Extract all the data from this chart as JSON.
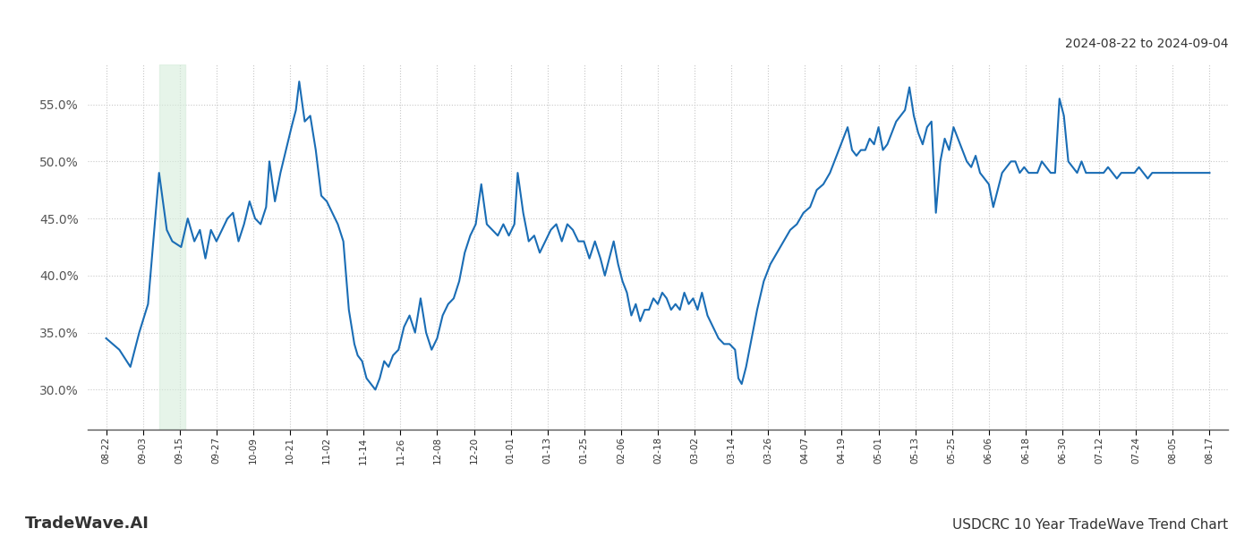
{
  "title_top_right": "2024-08-22 to 2024-09-04",
  "title_bottom_left": "TradeWave.AI",
  "title_bottom_right": "USDCRC 10 Year TradeWave Trend Chart",
  "line_color": "#1a6db5",
  "line_width": 1.5,
  "background_color": "#ffffff",
  "grid_color": "#c8c8c8",
  "highlight_color": "#d6eddb",
  "highlight_alpha": 0.6,
  "ylim": [
    0.265,
    0.585
  ],
  "yticks": [
    0.3,
    0.35,
    0.4,
    0.45,
    0.5,
    0.55
  ],
  "xtick_labels": [
    "08-22",
    "09-03",
    "09-15",
    "09-27",
    "10-09",
    "10-21",
    "11-02",
    "11-14",
    "11-26",
    "12-08",
    "12-20",
    "01-01",
    "01-13",
    "01-25",
    "02-06",
    "02-18",
    "03-02",
    "03-14",
    "03-26",
    "04-07",
    "04-19",
    "05-01",
    "05-13",
    "05-25",
    "06-06",
    "06-18",
    "06-30",
    "07-12",
    "07-24",
    "08-05",
    "08-17"
  ],
  "waypoints": [
    [
      0.0,
      0.345
    ],
    [
      0.012,
      0.335
    ],
    [
      0.022,
      0.32
    ],
    [
      0.03,
      0.35
    ],
    [
      0.038,
      0.375
    ],
    [
      0.048,
      0.49
    ],
    [
      0.055,
      0.44
    ],
    [
      0.06,
      0.43
    ],
    [
      0.068,
      0.425
    ],
    [
      0.074,
      0.45
    ],
    [
      0.08,
      0.43
    ],
    [
      0.085,
      0.44
    ],
    [
      0.09,
      0.415
    ],
    [
      0.095,
      0.44
    ],
    [
      0.1,
      0.43
    ],
    [
      0.105,
      0.44
    ],
    [
      0.11,
      0.45
    ],
    [
      0.115,
      0.455
    ],
    [
      0.12,
      0.43
    ],
    [
      0.125,
      0.445
    ],
    [
      0.13,
      0.465
    ],
    [
      0.135,
      0.45
    ],
    [
      0.14,
      0.445
    ],
    [
      0.145,
      0.46
    ],
    [
      0.148,
      0.5
    ],
    [
      0.153,
      0.465
    ],
    [
      0.158,
      0.49
    ],
    [
      0.163,
      0.51
    ],
    [
      0.168,
      0.53
    ],
    [
      0.172,
      0.545
    ],
    [
      0.175,
      0.57
    ],
    [
      0.18,
      0.535
    ],
    [
      0.185,
      0.54
    ],
    [
      0.19,
      0.51
    ],
    [
      0.195,
      0.47
    ],
    [
      0.2,
      0.465
    ],
    [
      0.205,
      0.455
    ],
    [
      0.21,
      0.445
    ],
    [
      0.215,
      0.43
    ],
    [
      0.22,
      0.37
    ],
    [
      0.225,
      0.34
    ],
    [
      0.228,
      0.33
    ],
    [
      0.232,
      0.325
    ],
    [
      0.236,
      0.31
    ],
    [
      0.24,
      0.305
    ],
    [
      0.244,
      0.3
    ],
    [
      0.248,
      0.31
    ],
    [
      0.252,
      0.325
    ],
    [
      0.256,
      0.32
    ],
    [
      0.26,
      0.33
    ],
    [
      0.265,
      0.335
    ],
    [
      0.27,
      0.355
    ],
    [
      0.275,
      0.365
    ],
    [
      0.28,
      0.35
    ],
    [
      0.285,
      0.38
    ],
    [
      0.29,
      0.35
    ],
    [
      0.295,
      0.335
    ],
    [
      0.3,
      0.345
    ],
    [
      0.305,
      0.365
    ],
    [
      0.31,
      0.375
    ],
    [
      0.315,
      0.38
    ],
    [
      0.32,
      0.395
    ],
    [
      0.325,
      0.42
    ],
    [
      0.33,
      0.435
    ],
    [
      0.335,
      0.445
    ],
    [
      0.34,
      0.48
    ],
    [
      0.345,
      0.445
    ],
    [
      0.35,
      0.44
    ],
    [
      0.355,
      0.435
    ],
    [
      0.36,
      0.445
    ],
    [
      0.365,
      0.435
    ],
    [
      0.37,
      0.445
    ],
    [
      0.373,
      0.49
    ],
    [
      0.378,
      0.455
    ],
    [
      0.383,
      0.43
    ],
    [
      0.388,
      0.435
    ],
    [
      0.393,
      0.42
    ],
    [
      0.398,
      0.43
    ],
    [
      0.403,
      0.44
    ],
    [
      0.408,
      0.445
    ],
    [
      0.413,
      0.43
    ],
    [
      0.418,
      0.445
    ],
    [
      0.423,
      0.44
    ],
    [
      0.428,
      0.43
    ],
    [
      0.433,
      0.43
    ],
    [
      0.438,
      0.415
    ],
    [
      0.443,
      0.43
    ],
    [
      0.448,
      0.415
    ],
    [
      0.452,
      0.4
    ],
    [
      0.456,
      0.415
    ],
    [
      0.46,
      0.43
    ],
    [
      0.464,
      0.41
    ],
    [
      0.468,
      0.395
    ],
    [
      0.472,
      0.385
    ],
    [
      0.476,
      0.365
    ],
    [
      0.48,
      0.375
    ],
    [
      0.484,
      0.36
    ],
    [
      0.488,
      0.37
    ],
    [
      0.492,
      0.37
    ],
    [
      0.496,
      0.38
    ],
    [
      0.5,
      0.375
    ],
    [
      0.504,
      0.385
    ],
    [
      0.508,
      0.38
    ],
    [
      0.512,
      0.37
    ],
    [
      0.516,
      0.375
    ],
    [
      0.52,
      0.37
    ],
    [
      0.524,
      0.385
    ],
    [
      0.528,
      0.375
    ],
    [
      0.532,
      0.38
    ],
    [
      0.536,
      0.37
    ],
    [
      0.54,
      0.385
    ],
    [
      0.545,
      0.365
    ],
    [
      0.55,
      0.355
    ],
    [
      0.555,
      0.345
    ],
    [
      0.56,
      0.34
    ],
    [
      0.565,
      0.34
    ],
    [
      0.57,
      0.335
    ],
    [
      0.573,
      0.31
    ],
    [
      0.576,
      0.305
    ],
    [
      0.58,
      0.32
    ],
    [
      0.585,
      0.345
    ],
    [
      0.59,
      0.37
    ],
    [
      0.596,
      0.395
    ],
    [
      0.602,
      0.41
    ],
    [
      0.608,
      0.42
    ],
    [
      0.614,
      0.43
    ],
    [
      0.62,
      0.44
    ],
    [
      0.626,
      0.445
    ],
    [
      0.632,
      0.455
    ],
    [
      0.638,
      0.46
    ],
    [
      0.644,
      0.475
    ],
    [
      0.65,
      0.48
    ],
    [
      0.656,
      0.49
    ],
    [
      0.66,
      0.5
    ],
    [
      0.664,
      0.51
    ],
    [
      0.668,
      0.52
    ],
    [
      0.672,
      0.53
    ],
    [
      0.676,
      0.51
    ],
    [
      0.68,
      0.505
    ],
    [
      0.684,
      0.51
    ],
    [
      0.688,
      0.51
    ],
    [
      0.692,
      0.52
    ],
    [
      0.696,
      0.515
    ],
    [
      0.7,
      0.53
    ],
    [
      0.704,
      0.51
    ],
    [
      0.708,
      0.515
    ],
    [
      0.712,
      0.525
    ],
    [
      0.716,
      0.535
    ],
    [
      0.72,
      0.54
    ],
    [
      0.724,
      0.545
    ],
    [
      0.728,
      0.565
    ],
    [
      0.732,
      0.54
    ],
    [
      0.736,
      0.525
    ],
    [
      0.74,
      0.515
    ],
    [
      0.744,
      0.53
    ],
    [
      0.748,
      0.535
    ],
    [
      0.752,
      0.455
    ],
    [
      0.756,
      0.5
    ],
    [
      0.76,
      0.52
    ],
    [
      0.764,
      0.51
    ],
    [
      0.768,
      0.53
    ],
    [
      0.772,
      0.52
    ],
    [
      0.776,
      0.51
    ],
    [
      0.78,
      0.5
    ],
    [
      0.784,
      0.495
    ],
    [
      0.788,
      0.505
    ],
    [
      0.792,
      0.49
    ],
    [
      0.796,
      0.485
    ],
    [
      0.8,
      0.48
    ],
    [
      0.804,
      0.46
    ],
    [
      0.808,
      0.475
    ],
    [
      0.812,
      0.49
    ],
    [
      0.816,
      0.495
    ],
    [
      0.82,
      0.5
    ],
    [
      0.824,
      0.5
    ],
    [
      0.828,
      0.49
    ],
    [
      0.832,
      0.495
    ],
    [
      0.836,
      0.49
    ],
    [
      0.84,
      0.49
    ],
    [
      0.844,
      0.49
    ],
    [
      0.848,
      0.5
    ],
    [
      0.852,
      0.495
    ],
    [
      0.856,
      0.49
    ],
    [
      0.86,
      0.49
    ],
    [
      0.864,
      0.555
    ],
    [
      0.868,
      0.54
    ],
    [
      0.872,
      0.5
    ],
    [
      0.876,
      0.495
    ],
    [
      0.88,
      0.49
    ],
    [
      0.884,
      0.5
    ],
    [
      0.888,
      0.49
    ],
    [
      0.892,
      0.49
    ],
    [
      0.896,
      0.49
    ],
    [
      0.9,
      0.49
    ],
    [
      0.904,
      0.49
    ],
    [
      0.908,
      0.495
    ],
    [
      0.912,
      0.49
    ],
    [
      0.916,
      0.485
    ],
    [
      0.92,
      0.49
    ],
    [
      0.924,
      0.49
    ],
    [
      0.928,
      0.49
    ],
    [
      0.932,
      0.49
    ],
    [
      0.936,
      0.495
    ],
    [
      0.94,
      0.49
    ],
    [
      0.944,
      0.485
    ],
    [
      0.948,
      0.49
    ],
    [
      0.952,
      0.49
    ],
    [
      0.956,
      0.49
    ],
    [
      0.96,
      0.49
    ],
    [
      0.964,
      0.49
    ],
    [
      0.968,
      0.49
    ],
    [
      0.972,
      0.49
    ],
    [
      0.976,
      0.49
    ],
    [
      0.98,
      0.49
    ],
    [
      0.984,
      0.49
    ],
    [
      0.988,
      0.49
    ],
    [
      0.992,
      0.49
    ],
    [
      0.996,
      0.49
    ],
    [
      1.0,
      0.49
    ]
  ],
  "highlight_xstart": 0.048,
  "highlight_xend": 0.072
}
